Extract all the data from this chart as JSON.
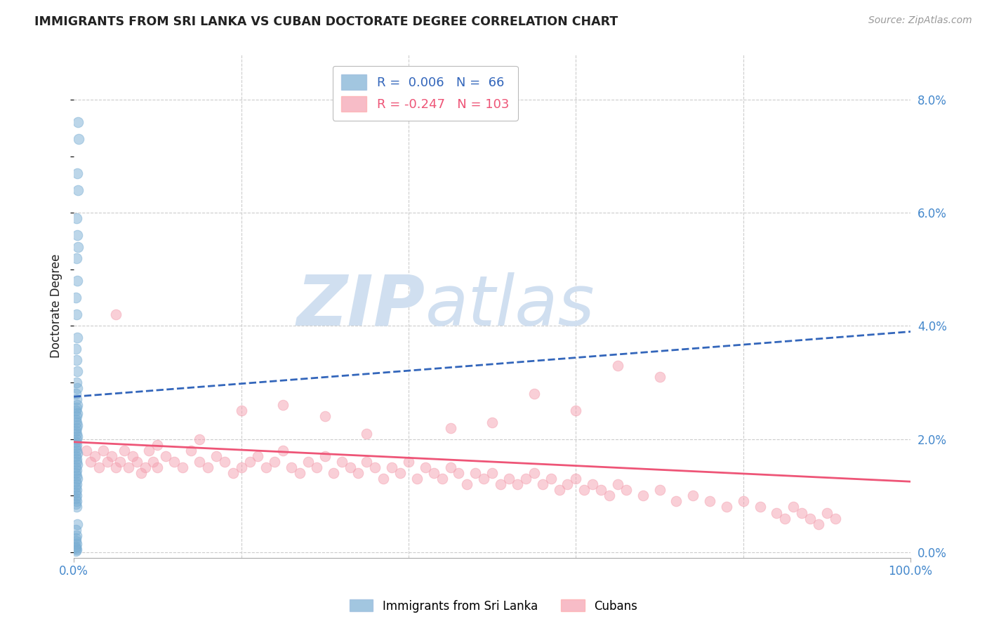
{
  "title": "IMMIGRANTS FROM SRI LANKA VS CUBAN DOCTORATE DEGREE CORRELATION CHART",
  "source": "Source: ZipAtlas.com",
  "ylabel": "Doctorate Degree",
  "right_yticks": [
    "0.0%",
    "2.0%",
    "4.0%",
    "6.0%",
    "8.0%"
  ],
  "right_ytick_vals": [
    0.0,
    2.0,
    4.0,
    6.0,
    8.0
  ],
  "xlim": [
    0.0,
    100.0
  ],
  "ylim": [
    -0.1,
    8.8
  ],
  "sri_lanka_color": "#7bafd4",
  "cuban_color": "#f4a0b0",
  "sri_lanka_line_color": "#3366bb",
  "cuban_line_color": "#ee5577",
  "watermark_zip": "ZIP",
  "watermark_atlas": "atlas",
  "watermark_color": "#d0dff0",
  "background_color": "#ffffff",
  "grid_color": "#cccccc",
  "title_color": "#222222",
  "axis_label_color": "#4488cc",
  "sri_lanka_scatter_x": [
    0.5,
    0.6,
    0.4,
    0.5,
    0.3,
    0.4,
    0.5,
    0.3,
    0.4,
    0.2,
    0.3,
    0.4,
    0.2,
    0.3,
    0.4,
    0.3,
    0.4,
    0.2,
    0.3,
    0.4,
    0.3,
    0.2,
    0.4,
    0.3,
    0.2,
    0.3,
    0.4,
    0.3,
    0.2,
    0.3,
    0.4,
    0.3,
    0.2,
    0.3,
    0.2,
    0.3,
    0.4,
    0.2,
    0.3,
    0.3,
    0.4,
    0.2,
    0.3,
    0.2,
    0.3,
    0.4,
    0.2,
    0.3,
    0.2,
    0.3,
    0.2,
    0.3,
    0.2,
    0.3,
    0.2,
    0.3,
    0.4,
    0.2,
    0.3,
    0.2,
    0.2,
    0.3,
    0.2,
    0.2,
    0.3,
    0.2
  ],
  "sri_lanka_scatter_y": [
    7.6,
    7.3,
    6.7,
    6.4,
    5.9,
    5.6,
    5.4,
    5.2,
    4.8,
    4.5,
    4.2,
    3.8,
    3.6,
    3.4,
    3.2,
    3.0,
    2.9,
    2.8,
    2.7,
    2.6,
    2.55,
    2.5,
    2.45,
    2.4,
    2.35,
    2.3,
    2.25,
    2.2,
    2.15,
    2.1,
    2.05,
    2.0,
    1.95,
    1.9,
    1.85,
    1.8,
    1.75,
    1.7,
    1.65,
    1.6,
    1.55,
    1.5,
    1.45,
    1.4,
    1.35,
    1.3,
    1.25,
    1.2,
    1.15,
    1.1,
    1.05,
    1.0,
    0.95,
    0.9,
    0.85,
    0.8,
    0.5,
    0.4,
    0.3,
    0.25,
    0.2,
    0.15,
    0.1,
    0.08,
    0.05,
    0.02
  ],
  "cuban_scatter_x": [
    1.5,
    2.0,
    2.5,
    3.0,
    3.5,
    4.0,
    4.5,
    5.0,
    5.5,
    6.0,
    6.5,
    7.0,
    7.5,
    8.0,
    8.5,
    9.0,
    9.5,
    10.0,
    11.0,
    12.0,
    13.0,
    14.0,
    15.0,
    16.0,
    17.0,
    18.0,
    19.0,
    20.0,
    21.0,
    22.0,
    23.0,
    24.0,
    25.0,
    26.0,
    27.0,
    28.0,
    29.0,
    30.0,
    31.0,
    32.0,
    33.0,
    34.0,
    35.0,
    36.0,
    37.0,
    38.0,
    39.0,
    40.0,
    41.0,
    42.0,
    43.0,
    44.0,
    45.0,
    46.0,
    47.0,
    48.0,
    49.0,
    50.0,
    51.0,
    52.0,
    53.0,
    54.0,
    55.0,
    56.0,
    57.0,
    58.0,
    59.0,
    60.0,
    61.0,
    62.0,
    63.0,
    64.0,
    65.0,
    66.0,
    68.0,
    70.0,
    72.0,
    74.0,
    76.0,
    78.0,
    80.0,
    82.0,
    84.0,
    85.0,
    86.0,
    87.0,
    88.0,
    89.0,
    90.0,
    91.0,
    65.0,
    70.0,
    60.0,
    55.0,
    50.0,
    45.0,
    35.0,
    30.0,
    25.0,
    20.0,
    15.0,
    10.0,
    5.0
  ],
  "cuban_scatter_y": [
    1.8,
    1.6,
    1.7,
    1.5,
    1.8,
    1.6,
    1.7,
    1.5,
    1.6,
    1.8,
    1.5,
    1.7,
    1.6,
    1.4,
    1.5,
    1.8,
    1.6,
    1.5,
    1.7,
    1.6,
    1.5,
    1.8,
    1.6,
    1.5,
    1.7,
    1.6,
    1.4,
    1.5,
    1.6,
    1.7,
    1.5,
    1.6,
    1.8,
    1.5,
    1.4,
    1.6,
    1.5,
    1.7,
    1.4,
    1.6,
    1.5,
    1.4,
    1.6,
    1.5,
    1.3,
    1.5,
    1.4,
    1.6,
    1.3,
    1.5,
    1.4,
    1.3,
    1.5,
    1.4,
    1.2,
    1.4,
    1.3,
    1.4,
    1.2,
    1.3,
    1.2,
    1.3,
    1.4,
    1.2,
    1.3,
    1.1,
    1.2,
    1.3,
    1.1,
    1.2,
    1.1,
    1.0,
    1.2,
    1.1,
    1.0,
    1.1,
    0.9,
    1.0,
    0.9,
    0.8,
    0.9,
    0.8,
    0.7,
    0.6,
    0.8,
    0.7,
    0.6,
    0.5,
    0.7,
    0.6,
    3.3,
    3.1,
    2.5,
    2.8,
    2.3,
    2.2,
    2.1,
    2.4,
    2.6,
    2.5,
    2.0,
    1.9,
    4.2
  ],
  "sri_lanka_trend_x": [
    0.0,
    100.0
  ],
  "sri_lanka_trend_y": [
    2.75,
    3.9
  ],
  "cuban_trend_x": [
    0.0,
    100.0
  ],
  "cuban_trend_y": [
    1.95,
    1.25
  ]
}
